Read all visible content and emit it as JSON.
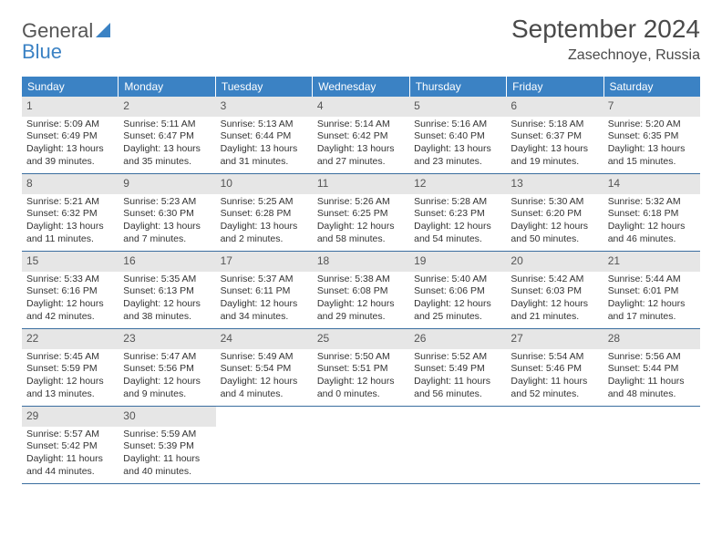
{
  "logo": {
    "line1": "General",
    "line2": "Blue"
  },
  "title": "September 2024",
  "location": "Zasechnoye, Russia",
  "colors": {
    "header_bg": "#3b82c4",
    "header_text": "#ffffff",
    "daynum_bg": "#e6e6e6",
    "week_border": "#3b6ea0",
    "text": "#333333",
    "muted_text": "#555555"
  },
  "dow": [
    "Sunday",
    "Monday",
    "Tuesday",
    "Wednesday",
    "Thursday",
    "Friday",
    "Saturday"
  ],
  "weeks": [
    [
      {
        "n": "1",
        "sunrise": "Sunrise: 5:09 AM",
        "sunset": "Sunset: 6:49 PM",
        "daylight": "Daylight: 13 hours and 39 minutes."
      },
      {
        "n": "2",
        "sunrise": "Sunrise: 5:11 AM",
        "sunset": "Sunset: 6:47 PM",
        "daylight": "Daylight: 13 hours and 35 minutes."
      },
      {
        "n": "3",
        "sunrise": "Sunrise: 5:13 AM",
        "sunset": "Sunset: 6:44 PM",
        "daylight": "Daylight: 13 hours and 31 minutes."
      },
      {
        "n": "4",
        "sunrise": "Sunrise: 5:14 AM",
        "sunset": "Sunset: 6:42 PM",
        "daylight": "Daylight: 13 hours and 27 minutes."
      },
      {
        "n": "5",
        "sunrise": "Sunrise: 5:16 AM",
        "sunset": "Sunset: 6:40 PM",
        "daylight": "Daylight: 13 hours and 23 minutes."
      },
      {
        "n": "6",
        "sunrise": "Sunrise: 5:18 AM",
        "sunset": "Sunset: 6:37 PM",
        "daylight": "Daylight: 13 hours and 19 minutes."
      },
      {
        "n": "7",
        "sunrise": "Sunrise: 5:20 AM",
        "sunset": "Sunset: 6:35 PM",
        "daylight": "Daylight: 13 hours and 15 minutes."
      }
    ],
    [
      {
        "n": "8",
        "sunrise": "Sunrise: 5:21 AM",
        "sunset": "Sunset: 6:32 PM",
        "daylight": "Daylight: 13 hours and 11 minutes."
      },
      {
        "n": "9",
        "sunrise": "Sunrise: 5:23 AM",
        "sunset": "Sunset: 6:30 PM",
        "daylight": "Daylight: 13 hours and 7 minutes."
      },
      {
        "n": "10",
        "sunrise": "Sunrise: 5:25 AM",
        "sunset": "Sunset: 6:28 PM",
        "daylight": "Daylight: 13 hours and 2 minutes."
      },
      {
        "n": "11",
        "sunrise": "Sunrise: 5:26 AM",
        "sunset": "Sunset: 6:25 PM",
        "daylight": "Daylight: 12 hours and 58 minutes."
      },
      {
        "n": "12",
        "sunrise": "Sunrise: 5:28 AM",
        "sunset": "Sunset: 6:23 PM",
        "daylight": "Daylight: 12 hours and 54 minutes."
      },
      {
        "n": "13",
        "sunrise": "Sunrise: 5:30 AM",
        "sunset": "Sunset: 6:20 PM",
        "daylight": "Daylight: 12 hours and 50 minutes."
      },
      {
        "n": "14",
        "sunrise": "Sunrise: 5:32 AM",
        "sunset": "Sunset: 6:18 PM",
        "daylight": "Daylight: 12 hours and 46 minutes."
      }
    ],
    [
      {
        "n": "15",
        "sunrise": "Sunrise: 5:33 AM",
        "sunset": "Sunset: 6:16 PM",
        "daylight": "Daylight: 12 hours and 42 minutes."
      },
      {
        "n": "16",
        "sunrise": "Sunrise: 5:35 AM",
        "sunset": "Sunset: 6:13 PM",
        "daylight": "Daylight: 12 hours and 38 minutes."
      },
      {
        "n": "17",
        "sunrise": "Sunrise: 5:37 AM",
        "sunset": "Sunset: 6:11 PM",
        "daylight": "Daylight: 12 hours and 34 minutes."
      },
      {
        "n": "18",
        "sunrise": "Sunrise: 5:38 AM",
        "sunset": "Sunset: 6:08 PM",
        "daylight": "Daylight: 12 hours and 29 minutes."
      },
      {
        "n": "19",
        "sunrise": "Sunrise: 5:40 AM",
        "sunset": "Sunset: 6:06 PM",
        "daylight": "Daylight: 12 hours and 25 minutes."
      },
      {
        "n": "20",
        "sunrise": "Sunrise: 5:42 AM",
        "sunset": "Sunset: 6:03 PM",
        "daylight": "Daylight: 12 hours and 21 minutes."
      },
      {
        "n": "21",
        "sunrise": "Sunrise: 5:44 AM",
        "sunset": "Sunset: 6:01 PM",
        "daylight": "Daylight: 12 hours and 17 minutes."
      }
    ],
    [
      {
        "n": "22",
        "sunrise": "Sunrise: 5:45 AM",
        "sunset": "Sunset: 5:59 PM",
        "daylight": "Daylight: 12 hours and 13 minutes."
      },
      {
        "n": "23",
        "sunrise": "Sunrise: 5:47 AM",
        "sunset": "Sunset: 5:56 PM",
        "daylight": "Daylight: 12 hours and 9 minutes."
      },
      {
        "n": "24",
        "sunrise": "Sunrise: 5:49 AM",
        "sunset": "Sunset: 5:54 PM",
        "daylight": "Daylight: 12 hours and 4 minutes."
      },
      {
        "n": "25",
        "sunrise": "Sunrise: 5:50 AM",
        "sunset": "Sunset: 5:51 PM",
        "daylight": "Daylight: 12 hours and 0 minutes."
      },
      {
        "n": "26",
        "sunrise": "Sunrise: 5:52 AM",
        "sunset": "Sunset: 5:49 PM",
        "daylight": "Daylight: 11 hours and 56 minutes."
      },
      {
        "n": "27",
        "sunrise": "Sunrise: 5:54 AM",
        "sunset": "Sunset: 5:46 PM",
        "daylight": "Daylight: 11 hours and 52 minutes."
      },
      {
        "n": "28",
        "sunrise": "Sunrise: 5:56 AM",
        "sunset": "Sunset: 5:44 PM",
        "daylight": "Daylight: 11 hours and 48 minutes."
      }
    ],
    [
      {
        "n": "29",
        "sunrise": "Sunrise: 5:57 AM",
        "sunset": "Sunset: 5:42 PM",
        "daylight": "Daylight: 11 hours and 44 minutes."
      },
      {
        "n": "30",
        "sunrise": "Sunrise: 5:59 AM",
        "sunset": "Sunset: 5:39 PM",
        "daylight": "Daylight: 11 hours and 40 minutes."
      },
      null,
      null,
      null,
      null,
      null
    ]
  ]
}
